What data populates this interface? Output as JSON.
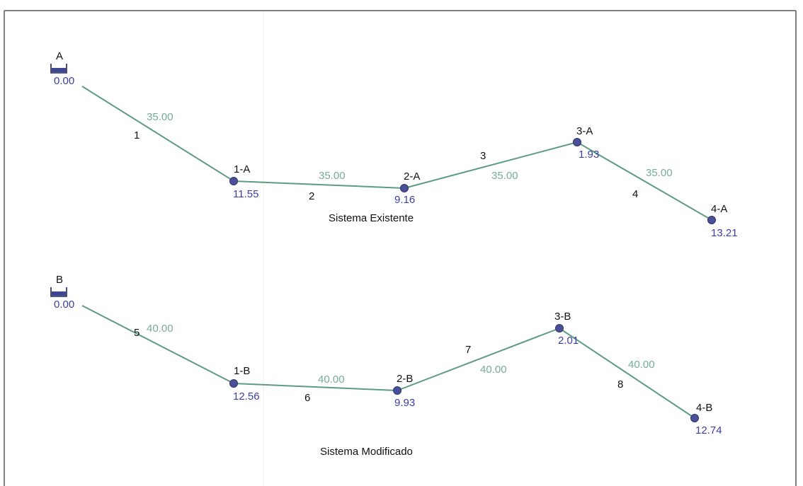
{
  "systems": [
    {
      "title": "Sistema Existente",
      "source": {
        "name": "A",
        "value": "0.00"
      },
      "junctions": [
        {
          "name": "1-A",
          "value": "11.55"
        },
        {
          "name": "2-A",
          "value": "9.16"
        },
        {
          "name": "3-A",
          "value": "1.93"
        },
        {
          "name": "4-A",
          "value": "13.21"
        }
      ],
      "pipes": [
        {
          "id": "1",
          "length": "35.00"
        },
        {
          "id": "2",
          "length": "35.00"
        },
        {
          "id": "3",
          "length": "35.00"
        },
        {
          "id": "4",
          "length": "35.00"
        }
      ]
    },
    {
      "title": "Sistema Modificado",
      "source": {
        "name": "B",
        "value": "0.00"
      },
      "junctions": [
        {
          "name": "1-B",
          "value": "12.56"
        },
        {
          "name": "2-B",
          "value": "9.93"
        },
        {
          "name": "3-B",
          "value": "2.01"
        },
        {
          "name": "4-B",
          "value": "12.74"
        }
      ],
      "pipes": [
        {
          "id": "5",
          "length": "40.00"
        },
        {
          "id": "6",
          "length": "40.00"
        },
        {
          "id": "7",
          "length": "40.00"
        },
        {
          "id": "8",
          "length": "40.00"
        }
      ]
    }
  ],
  "colors": {
    "pipe": "#5e9c82",
    "node": "#4a5096",
    "node_value": "#3b3fa0",
    "pipe_length": "#74ae94",
    "label": "#111111"
  }
}
